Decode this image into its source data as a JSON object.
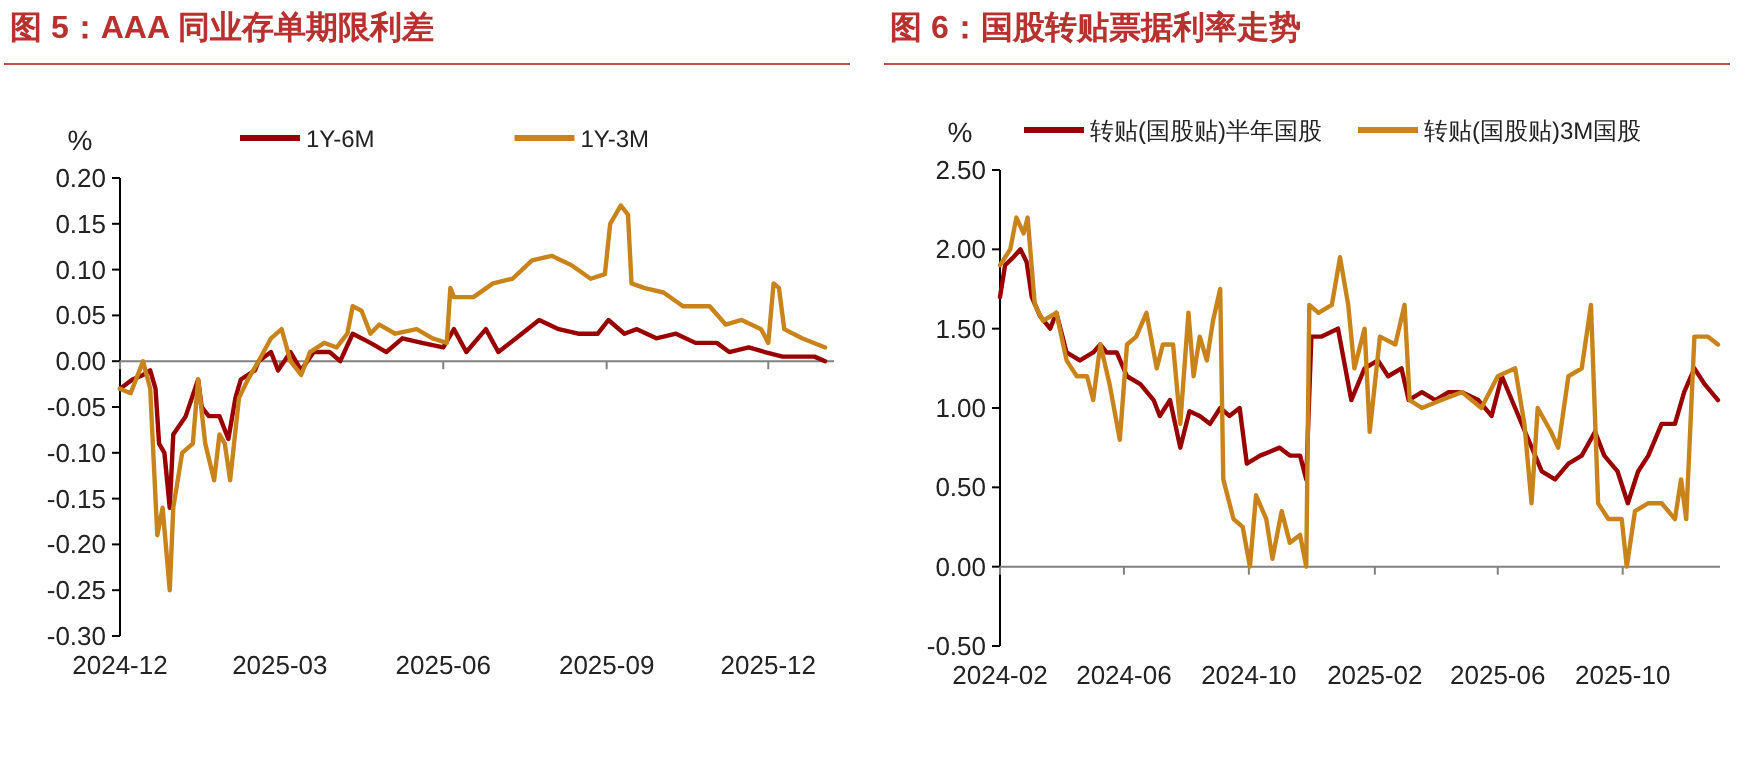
{
  "chart_data": [
    {
      "type": "line",
      "title": "图 5：AAA 同业存单期限利差",
      "ylabel": "%",
      "legend": "top",
      "xlim": [
        "2024-12-01",
        "2026-01-07"
      ],
      "xticks": [
        "2024-12",
        "2025-03",
        "2025-06",
        "2025-09",
        "2025-12"
      ],
      "ylim": [
        -0.3,
        0.2
      ],
      "yticks": [
        {
          "value": 0.2,
          "label": "0.20"
        },
        {
          "value": 0.15,
          "label": "0.15"
        },
        {
          "value": 0.1,
          "label": "0.10"
        },
        {
          "value": 0.05,
          "label": "0.05"
        },
        {
          "value": 0,
          "label": "0.00"
        },
        {
          "value": -0.05,
          "label": "-0.05"
        },
        {
          "value": -0.1,
          "label": "-0.10"
        },
        {
          "value": -0.15,
          "label": "-0.15"
        },
        {
          "value": -0.2,
          "label": "-0.20"
        },
        {
          "value": -0.25,
          "label": "-0.25"
        },
        {
          "value": -0.3,
          "label": "-0.30"
        }
      ],
      "series": [
        {
          "name": "1Y-6M",
          "color": "#990000",
          "x": [
            "2024-12-01",
            "2024-12-08",
            "2024-12-14",
            "2024-12-18",
            "2024-12-21",
            "2024-12-23",
            "2024-12-26",
            "2024-12-29",
            "2024-12-31",
            "2025-01-07",
            "2025-01-14",
            "2025-01-16",
            "2025-01-20",
            "2025-01-26",
            "2025-01-31",
            "2025-02-04",
            "2025-02-07",
            "2025-02-15",
            "2025-02-17",
            "2025-02-24",
            "2025-02-28",
            "2025-03-07",
            "2025-03-13",
            "2025-03-20",
            "2025-03-29",
            "2025-04-04",
            "2025-04-11",
            "2025-04-21",
            "2025-04-30",
            "2025-05-09",
            "2025-05-20",
            "2025-06-01",
            "2025-06-07",
            "2025-06-14",
            "2025-06-25",
            "2025-07-02",
            "2025-07-12",
            "2025-07-25",
            "2025-08-05",
            "2025-08-16",
            "2025-08-27",
            "2025-09-02",
            "2025-09-11",
            "2025-09-18",
            "2025-09-29",
            "2025-10-10",
            "2025-10-21",
            "2025-11-02",
            "2025-11-09",
            "2025-11-20",
            "2025-11-29",
            "2025-12-09",
            "2025-12-20",
            "2025-12-27",
            "2026-01-02"
          ],
          "values": [
            -0.03,
            -0.02,
            -0.015,
            -0.01,
            -0.03,
            -0.09,
            -0.1,
            -0.16,
            -0.08,
            -0.06,
            -0.02,
            -0.05,
            -0.06,
            -0.06,
            -0.085,
            -0.04,
            -0.02,
            -0.01,
            0.0,
            0.01,
            -0.01,
            0.01,
            -0.01,
            0.01,
            0.01,
            0.0,
            0.03,
            0.02,
            0.01,
            0.025,
            0.02,
            0.015,
            0.035,
            0.01,
            0.035,
            0.01,
            0.025,
            0.045,
            0.035,
            0.03,
            0.03,
            0.045,
            0.03,
            0.035,
            0.025,
            0.03,
            0.02,
            0.02,
            0.01,
            0.015,
            0.01,
            0.005,
            0.005,
            0.005,
            0.0
          ]
        },
        {
          "name": "1Y-3M",
          "color": "#c8841a",
          "x": [
            "2024-12-01",
            "2024-12-07",
            "2024-12-12",
            "2024-12-14",
            "2024-12-18",
            "2024-12-22",
            "2024-12-25",
            "2024-12-29",
            "2024-12-31",
            "2025-01-05",
            "2025-01-11",
            "2025-01-14",
            "2025-01-18",
            "2025-01-23",
            "2025-01-26",
            "2025-01-29",
            "2025-02-01",
            "2025-02-06",
            "2025-02-11",
            "2025-02-17",
            "2025-02-24",
            "2025-03-02",
            "2025-03-07",
            "2025-03-13",
            "2025-03-18",
            "2025-03-26",
            "2025-04-02",
            "2025-04-08",
            "2025-04-11",
            "2025-04-16",
            "2025-04-21",
            "2025-04-26",
            "2025-05-05",
            "2025-05-17",
            "2025-05-26",
            "2025-06-03",
            "2025-06-05",
            "2025-06-07",
            "2025-06-18",
            "2025-06-29",
            "2025-07-10",
            "2025-07-21",
            "2025-08-01",
            "2025-08-12",
            "2025-08-23",
            "2025-08-31",
            "2025-09-03",
            "2025-09-09",
            "2025-09-13",
            "2025-09-15",
            "2025-09-22",
            "2025-10-03",
            "2025-10-14",
            "2025-10-29",
            "2025-11-07",
            "2025-11-16",
            "2025-11-27",
            "2025-12-01",
            "2025-12-04",
            "2025-12-07",
            "2025-12-10",
            "2025-12-20",
            "2026-01-02"
          ],
          "values": [
            -0.03,
            -0.035,
            -0.01,
            0.0,
            -0.03,
            -0.19,
            -0.16,
            -0.25,
            -0.16,
            -0.1,
            -0.09,
            -0.02,
            -0.09,
            -0.13,
            -0.08,
            -0.09,
            -0.13,
            -0.04,
            -0.02,
            0.0,
            0.025,
            0.035,
            0.0,
            -0.015,
            0.01,
            0.02,
            0.015,
            0.03,
            0.06,
            0.055,
            0.03,
            0.04,
            0.03,
            0.035,
            0.025,
            0.02,
            0.08,
            0.07,
            0.07,
            0.085,
            0.09,
            0.11,
            0.115,
            0.105,
            0.09,
            0.095,
            0.15,
            0.17,
            0.16,
            0.085,
            0.08,
            0.075,
            0.06,
            0.06,
            0.04,
            0.045,
            0.035,
            0.02,
            0.085,
            0.08,
            0.035,
            0.025,
            0.015
          ]
        }
      ]
    },
    {
      "type": "line",
      "title": "图 6：国股转贴票据利率走势",
      "ylabel": "%",
      "legend": "top",
      "xlim": [
        "2024-02-01",
        "2026-01-04"
      ],
      "xticks": [
        "2024-02",
        "2024-06",
        "2024-10",
        "2025-02",
        "2025-06",
        "2025-10"
      ],
      "ylim": [
        -0.5,
        2.5
      ],
      "yticks": [
        {
          "value": 2.5,
          "label": "2.50"
        },
        {
          "value": 2.0,
          "label": "2.00"
        },
        {
          "value": 1.5,
          "label": "1.50"
        },
        {
          "value": 1.0,
          "label": "1.00"
        },
        {
          "value": 0.5,
          "label": "0.50"
        },
        {
          "value": 0,
          "label": "0.00"
        },
        {
          "value": -0.5,
          "label": "-0.50"
        }
      ],
      "series": [
        {
          "name": "转贴(国股贴)半年国股",
          "color": "#990000",
          "x": [
            "2024-02-01",
            "2024-02-06",
            "2024-02-14",
            "2024-02-21",
            "2024-02-27",
            "2024-03-03",
            "2024-03-11",
            "2024-03-21",
            "2024-03-27",
            "2024-04-06",
            "2024-04-19",
            "2024-05-02",
            "2024-05-09",
            "2024-05-15",
            "2024-05-25",
            "2024-06-04",
            "2024-06-17",
            "2024-06-30",
            "2024-07-06",
            "2024-07-16",
            "2024-07-26",
            "2024-08-04",
            "2024-08-14",
            "2024-08-24",
            "2024-09-03",
            "2024-09-12",
            "2024-09-22",
            "2024-09-29",
            "2024-10-12",
            "2024-10-31",
            "2024-11-10",
            "2024-11-20",
            "2024-11-26",
            "2024-12-01",
            "2024-12-11",
            "2024-12-27",
            "2025-01-09",
            "2025-01-22",
            "2025-02-04",
            "2025-02-14",
            "2025-02-27",
            "2025-03-06",
            "2025-03-19",
            "2025-04-01",
            "2025-04-14",
            "2025-04-27",
            "2025-05-13",
            "2025-05-26",
            "2025-06-05",
            "2025-06-18",
            "2025-07-01",
            "2025-07-14",
            "2025-07-27",
            "2025-08-09",
            "2025-08-22",
            "2025-09-04",
            "2025-09-13",
            "2025-09-26",
            "2025-10-06",
            "2025-10-16",
            "2025-10-26",
            "2025-11-08",
            "2025-11-21",
            "2025-11-30",
            "2025-12-10",
            "2025-12-20",
            "2026-01-02"
          ],
          "values": [
            1.7,
            1.9,
            1.95,
            2.0,
            1.92,
            1.7,
            1.58,
            1.5,
            1.6,
            1.35,
            1.3,
            1.35,
            1.4,
            1.35,
            1.35,
            1.2,
            1.15,
            1.05,
            0.95,
            1.05,
            0.75,
            0.98,
            0.95,
            0.9,
            1.0,
            0.95,
            1.0,
            0.65,
            0.7,
            0.75,
            0.7,
            0.7,
            0.55,
            1.45,
            1.45,
            1.5,
            1.05,
            1.25,
            1.3,
            1.2,
            1.25,
            1.05,
            1.1,
            1.05,
            1.1,
            1.1,
            1.05,
            0.95,
            1.2,
            1.0,
            0.8,
            0.6,
            0.55,
            0.65,
            0.7,
            0.85,
            0.7,
            0.6,
            0.4,
            0.6,
            0.7,
            0.9,
            0.9,
            1.1,
            1.25,
            1.15,
            1.05
          ]
        },
        {
          "name": "转贴(国股贴)3M国股",
          "color": "#c8841a",
          "x": [
            "2024-02-01",
            "2024-02-11",
            "2024-02-17",
            "2024-02-24",
            "2024-02-28",
            "2024-03-06",
            "2024-03-14",
            "2024-03-27",
            "2024-04-06",
            "2024-04-16",
            "2024-04-26",
            "2024-05-02",
            "2024-05-09",
            "2024-05-18",
            "2024-05-28",
            "2024-06-04",
            "2024-06-13",
            "2024-06-23",
            "2024-07-03",
            "2024-07-09",
            "2024-07-19",
            "2024-07-26",
            "2024-08-03",
            "2024-08-08",
            "2024-08-14",
            "2024-08-21",
            "2024-08-27",
            "2024-09-03",
            "2024-09-06",
            "2024-09-16",
            "2024-09-25",
            "2024-10-02",
            "2024-10-08",
            "2024-10-18",
            "2024-10-24",
            "2024-11-02",
            "2024-11-10",
            "2024-11-20",
            "2024-11-26",
            "2024-11-29",
            "2024-12-08",
            "2024-12-21",
            "2024-12-29",
            "2025-01-06",
            "2025-01-12",
            "2025-01-22",
            "2025-01-27",
            "2025-02-06",
            "2025-02-21",
            "2025-03-02",
            "2025-03-07",
            "2025-03-19",
            "2025-04-07",
            "2025-04-27",
            "2025-05-16",
            "2025-06-01",
            "2025-06-18",
            "2025-06-27",
            "2025-07-04",
            "2025-07-10",
            "2025-07-23",
            "2025-07-30",
            "2025-08-09",
            "2025-08-22",
            "2025-08-31",
            "2025-09-07",
            "2025-09-17",
            "2025-09-30",
            "2025-10-05",
            "2025-10-13",
            "2025-10-26",
            "2025-11-08",
            "2025-11-21",
            "2025-11-27",
            "2025-12-02",
            "2025-12-10",
            "2025-12-23",
            "2026-01-02"
          ],
          "values": [
            1.9,
            2.0,
            2.2,
            2.1,
            2.2,
            1.65,
            1.55,
            1.6,
            1.3,
            1.2,
            1.2,
            1.05,
            1.4,
            1.15,
            0.8,
            1.4,
            1.45,
            1.6,
            1.25,
            1.4,
            1.4,
            0.9,
            1.6,
            1.2,
            1.45,
            1.3,
            1.55,
            1.75,
            0.55,
            0.3,
            0.25,
            0.0,
            0.45,
            0.3,
            0.05,
            0.35,
            0.15,
            0.2,
            0.0,
            1.65,
            1.6,
            1.65,
            1.95,
            1.65,
            1.25,
            1.5,
            0.85,
            1.45,
            1.4,
            1.65,
            1.05,
            1.0,
            1.05,
            1.1,
            1.0,
            1.2,
            1.25,
            0.9,
            0.4,
            1.0,
            0.85,
            0.75,
            1.2,
            1.25,
            1.65,
            0.4,
            0.3,
            0.3,
            0.0,
            0.35,
            0.4,
            0.4,
            0.3,
            0.55,
            0.3,
            1.45,
            1.45,
            1.4
          ]
        }
      ]
    }
  ]
}
